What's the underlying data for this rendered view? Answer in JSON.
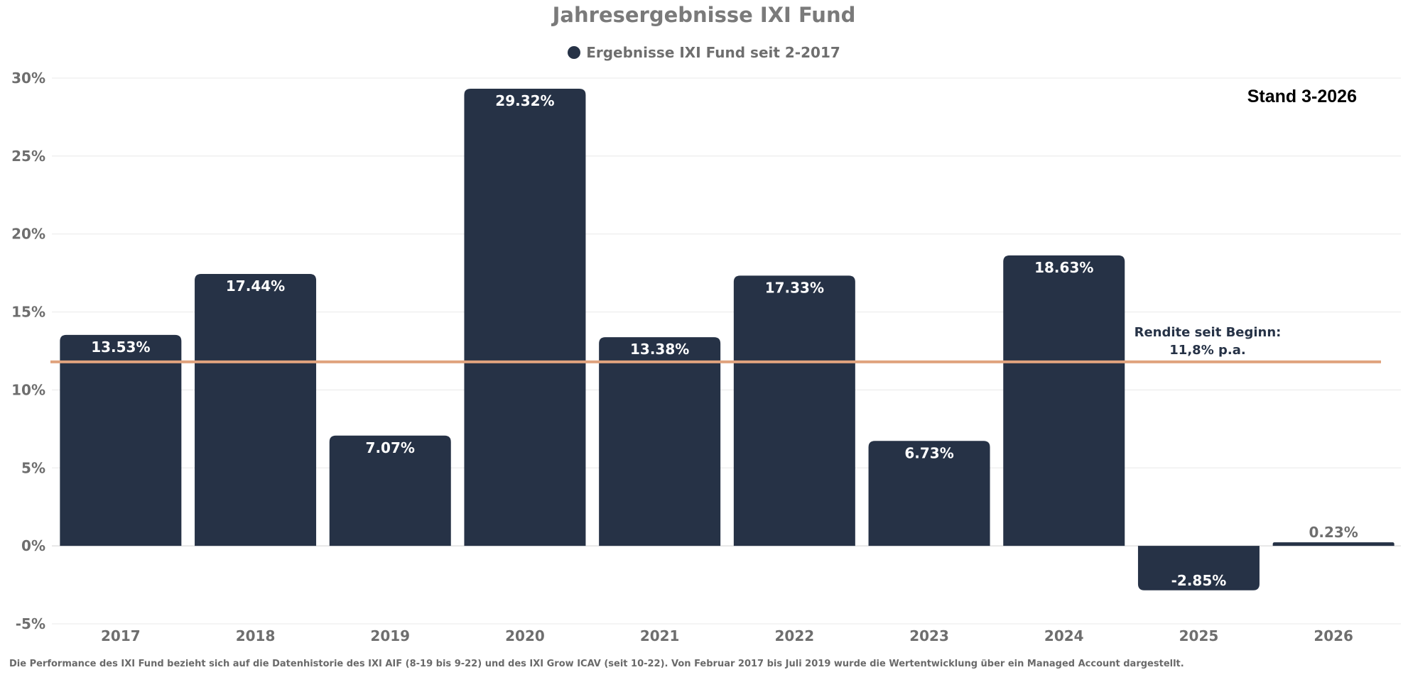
{
  "chart_data": {
    "type": "bar",
    "title": "Jahresergebnisse IXI Fund",
    "categories": [
      "2017",
      "2018",
      "2019",
      "2020",
      "2021",
      "2022",
      "2023",
      "2024",
      "2025",
      "2026"
    ],
    "series": [
      {
        "name": "Ergebnisse IXI Fund seit 2-2017",
        "values": [
          13.53,
          17.44,
          7.07,
          29.32,
          13.38,
          17.33,
          6.73,
          18.63,
          -2.85,
          0.23
        ],
        "color": "#263246"
      }
    ],
    "data_labels": [
      "13.53%",
      "17.44%",
      "7.07%",
      "29.32%",
      "13.38%",
      "17.33%",
      "6.73%",
      "18.63%",
      "-2.85%",
      "0.23%"
    ],
    "xlabel": "",
    "ylabel": "",
    "ylim": [
      -5,
      30
    ],
    "yticks": [
      -5,
      0,
      5,
      10,
      15,
      20,
      25,
      30
    ],
    "ytick_labels": [
      "-5%",
      "0%",
      "5%",
      "10%",
      "15%",
      "20%",
      "25%",
      "30%"
    ],
    "grid": true,
    "legend_position": "top-center",
    "reference_line": {
      "value": 11.8,
      "color": "#e0a37e",
      "label_line1": "Rendite seit Beginn:",
      "label_line2": "11,8% p.a."
    },
    "annotation": "Stand 3-2026",
    "footnote": "Die Performance des IXI Fund bezieht sich auf die Datenhistorie des IXI AIF (8-19 bis 9-22) und des IXI Grow ICAV (seit 10-22). Von Februar 2017 bis Juli 2019 wurde die Wertentwicklung über ein Managed Account dargestellt."
  }
}
